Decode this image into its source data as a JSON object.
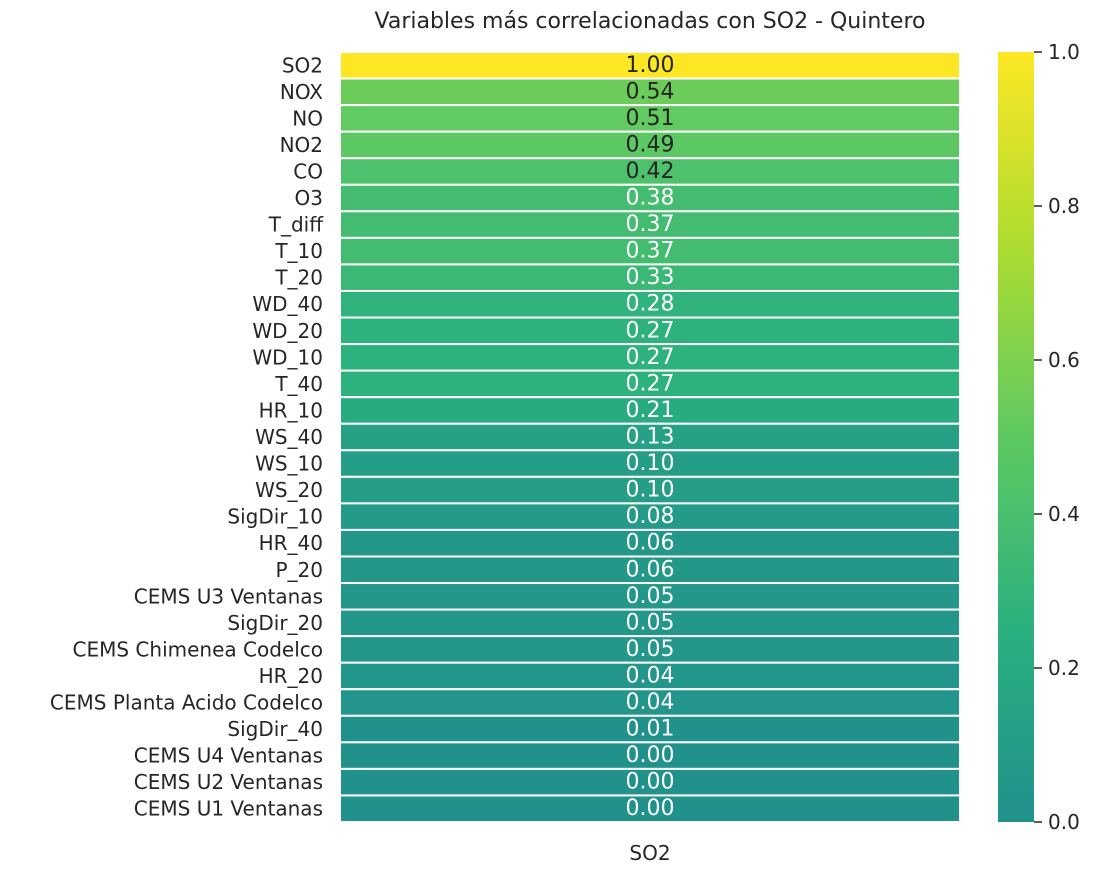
{
  "chart_data": {
    "type": "heatmap",
    "title": "Variables más correlacionadas con SO2 - Quintero",
    "columns": [
      "SO2"
    ],
    "rows": [
      "SO2",
      "NOX",
      "NO",
      "NO2",
      "CO",
      "O3",
      "T_diff",
      "T_10",
      "T_20",
      "WD_40",
      "WD_20",
      "WD_10",
      "T_40",
      "HR_10",
      "WS_40",
      "WS_10",
      "WS_20",
      "SigDir_10",
      "HR_40",
      "P_20",
      "CEMS U3 Ventanas",
      "SigDir_20",
      "CEMS Chimenea Codelco",
      "HR_20",
      "CEMS Planta Acido Codelco",
      "SigDir_40",
      "CEMS U4 Ventanas",
      "CEMS U2 Ventanas",
      "CEMS U1 Ventanas"
    ],
    "values": [
      1.0,
      0.54,
      0.51,
      0.49,
      0.42,
      0.38,
      0.37,
      0.37,
      0.33,
      0.28,
      0.27,
      0.27,
      0.27,
      0.21,
      0.13,
      0.1,
      0.1,
      0.08,
      0.06,
      0.06,
      0.05,
      0.05,
      0.05,
      0.04,
      0.04,
      0.01,
      0.0,
      0.0,
      0.0
    ],
    "value_labels": [
      "1.00",
      "0.54",
      "0.51",
      "0.49",
      "0.42",
      "0.38",
      "0.37",
      "0.37",
      "0.33",
      "0.28",
      "0.27",
      "0.27",
      "0.27",
      "0.21",
      "0.13",
      "0.10",
      "0.10",
      "0.08",
      "0.06",
      "0.06",
      "0.05",
      "0.05",
      "0.05",
      "0.04",
      "0.04",
      "0.01",
      "0.00",
      "0.00",
      "0.00"
    ],
    "colorbar": {
      "range": [
        0,
        1
      ],
      "ticks": [
        "0.0",
        "0.2",
        "0.4",
        "0.6",
        "0.8",
        "1.0"
      ],
      "colormap": [
        "#21918c",
        "#2ab07f",
        "#5ec962",
        "#addc30",
        "#fde725"
      ]
    }
  }
}
